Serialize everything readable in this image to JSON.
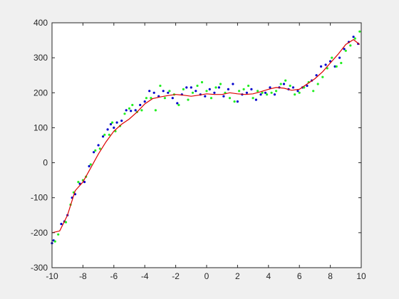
{
  "chart_data": {
    "type": "scatter",
    "xlim": [
      -10,
      10
    ],
    "ylim": [
      -300,
      400
    ],
    "x_ticks": [
      -10,
      -8,
      -6,
      -4,
      -2,
      0,
      2,
      4,
      6,
      8,
      10
    ],
    "y_ticks": [
      -300,
      -200,
      -100,
      0,
      100,
      200,
      300,
      400
    ],
    "x_tick_labels": [
      "-10",
      "-8",
      "-6",
      "-4",
      "-2",
      "0",
      "2",
      "4",
      "6",
      "8",
      "10"
    ],
    "y_tick_labels": [
      "-300",
      "-200",
      "-100",
      "0",
      "100",
      "200",
      "300",
      "400"
    ],
    "grid": false,
    "legend": "none",
    "colors": {
      "series_a": "#0000cc",
      "series_b": "#22ee22",
      "fit": "#dd0000",
      "axes": "#262626",
      "plot_bg": "#ffffff"
    },
    "series": [
      {
        "kind": "scatter",
        "color_key": "series_a",
        "x": [
          -10,
          -9.9,
          -9.4,
          -9.2,
          -9.0,
          -8.7,
          -8.5,
          -8.2,
          -7.9,
          -7.6,
          -7.3,
          -7.0,
          -6.7,
          -6.4,
          -6.2,
          -6.0,
          -5.8,
          -5.5,
          -5.2,
          -4.9,
          -4.6,
          -4.3,
          -4.0,
          -3.7,
          -3.4,
          -3.1,
          -2.8,
          -2.5,
          -2.2,
          -1.9,
          -1.6,
          -1.3,
          -1.0,
          -0.7,
          -0.4,
          -0.1,
          0.2,
          0.5,
          0.8,
          1.1,
          1.4,
          1.7,
          2.0,
          2.3,
          2.6,
          2.9,
          3.2,
          3.5,
          3.8,
          4.1,
          4.4,
          4.7,
          5.0,
          5.3,
          5.6,
          5.9,
          6.2,
          6.5,
          6.8,
          7.1,
          7.4,
          7.7,
          8.0,
          8.3,
          8.6,
          8.9,
          9.2,
          9.5,
          9.8
        ],
        "y": [
          -230,
          -222,
          -175,
          -168,
          -150,
          -100,
          -90,
          -60,
          -55,
          -10,
          30,
          50,
          75,
          95,
          110,
          100,
          115,
          120,
          150,
          148,
          150,
          165,
          175,
          205,
          200,
          190,
          205,
          200,
          185,
          170,
          195,
          215,
          215,
          205,
          195,
          190,
          210,
          200,
          215,
          190,
          210,
          225,
          175,
          195,
          200,
          210,
          180,
          195,
          200,
          215,
          195,
          215,
          225,
          210,
          215,
          205,
          215,
          220,
          235,
          250,
          275,
          280,
          290,
          275,
          300,
          325,
          345,
          360,
          340
        ]
      },
      {
        "kind": "scatter",
        "color_key": "series_b",
        "x": [
          -9.8,
          -9.6,
          -9.1,
          -8.8,
          -8.6,
          -8.3,
          -8.0,
          -7.8,
          -7.5,
          -7.2,
          -6.9,
          -6.6,
          -6.3,
          -6.1,
          -5.9,
          -5.6,
          -5.3,
          -5.0,
          -4.8,
          -4.5,
          -4.2,
          -3.9,
          -3.6,
          -3.3,
          -3.0,
          -2.7,
          -2.4,
          -2.1,
          -1.8,
          -1.5,
          -1.2,
          -0.9,
          -0.6,
          -0.3,
          0.0,
          0.3,
          0.6,
          0.9,
          1.2,
          1.5,
          1.8,
          2.1,
          2.4,
          2.7,
          3.0,
          3.3,
          3.6,
          3.9,
          4.2,
          4.5,
          4.8,
          5.1,
          5.4,
          5.7,
          6.0,
          6.3,
          6.6,
          6.9,
          7.2,
          7.5,
          7.8,
          8.1,
          8.4,
          8.7,
          9.0,
          9.3,
          9.6,
          9.9
        ],
        "y": [
          -225,
          -205,
          -170,
          -120,
          -85,
          -55,
          -50,
          -40,
          -5,
          35,
          40,
          80,
          80,
          115,
          90,
          105,
          140,
          155,
          165,
          145,
          150,
          185,
          185,
          150,
          220,
          185,
          205,
          195,
          165,
          210,
          180,
          200,
          220,
          230,
          205,
          185,
          215,
          225,
          200,
          185,
          175,
          205,
          210,
          220,
          185,
          205,
          200,
          195,
          200,
          205,
          225,
          235,
          220,
          195,
          200,
          215,
          230,
          205,
          225,
          245,
          270,
          300,
          275,
          285,
          320,
          335,
          355,
          375
        ]
      },
      {
        "kind": "line",
        "color_key": "fit",
        "x": [
          -10,
          -9.5,
          -9.0,
          -8.5,
          -8.0,
          -7.5,
          -7.0,
          -6.5,
          -6.0,
          -5.5,
          -5.0,
          -4.5,
          -4.0,
          -3.5,
          -3.0,
          -2.5,
          -2.0,
          -1.5,
          -1.0,
          -0.5,
          0.0,
          0.5,
          1.0,
          1.5,
          2.0,
          2.5,
          3.0,
          3.5,
          4.0,
          4.5,
          5.0,
          5.5,
          6.0,
          6.5,
          7.0,
          7.5,
          8.0,
          8.5,
          9.0,
          9.5,
          9.9
        ],
        "y": [
          -200,
          -195,
          -150,
          -80,
          -55,
          -15,
          25,
          60,
          90,
          110,
          125,
          145,
          168,
          183,
          188,
          192,
          195,
          193,
          190,
          193,
          197,
          195,
          195,
          200,
          197,
          195,
          197,
          203,
          210,
          215,
          213,
          207,
          210,
          225,
          240,
          260,
          285,
          310,
          338,
          352,
          338
        ]
      }
    ]
  }
}
